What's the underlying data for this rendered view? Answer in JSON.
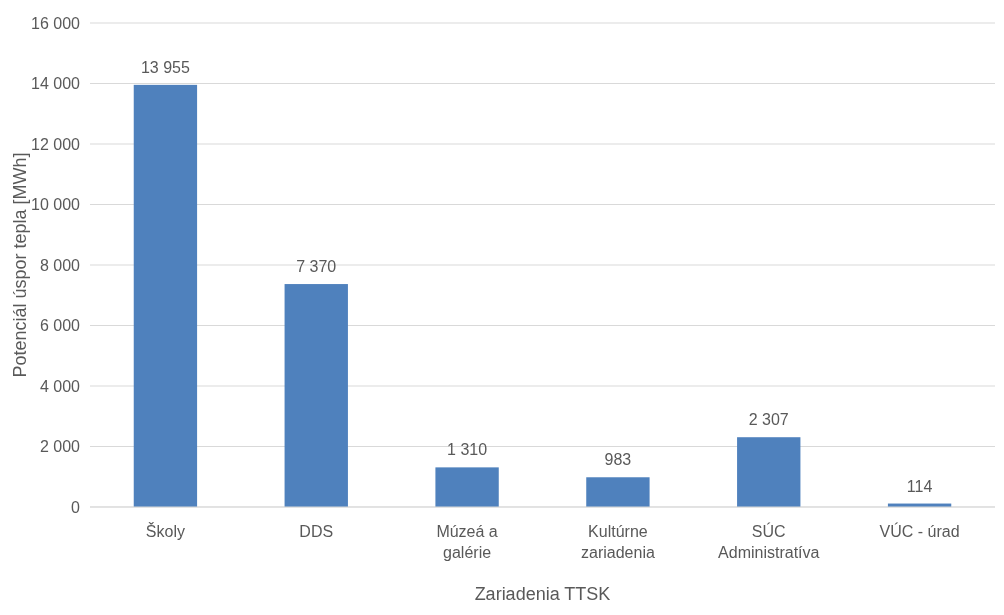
{
  "chart_data": {
    "type": "bar",
    "xlabel": "Zariadenia TTSK",
    "ylabel": "Potenciál  úspor tepla [MWh]",
    "categories": [
      "Školy",
      "DDS",
      "Múzeá a galérie",
      "Kultúrne zariadenia",
      "SÚC Administratíva",
      "VÚC - úrad"
    ],
    "values": [
      13955,
      7370,
      1310,
      983,
      2307,
      114
    ],
    "color": "#4f81bd",
    "ylim": [
      0,
      16000
    ],
    "yticks": [
      0,
      {
        "value": 2000,
        "label": "2 000"
      },
      {
        "value": 4000,
        "label": "4 000"
      },
      {
        "value": 6000,
        "label": "6 000"
      },
      {
        "value": 8000,
        "label": "8 000"
      },
      {
        "value": 10000,
        "label": "10 000"
      },
      {
        "value": 12000,
        "label": "12 000"
      },
      {
        "value": 14000,
        "label": "14 000"
      },
      {
        "value": 16000,
        "label": "16 000"
      }
    ],
    "grid": "y",
    "data_labels": true
  }
}
